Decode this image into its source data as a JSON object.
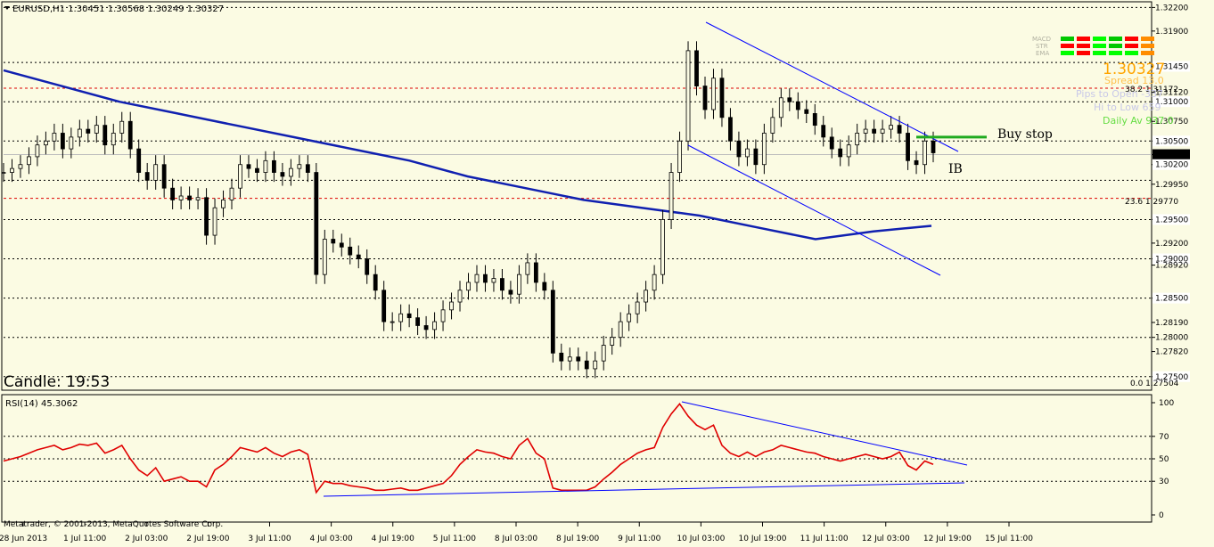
{
  "header": {
    "symbol_line": "EURUSD,H1  1.30451 1.30568 1.30249 1.30327",
    "rsi_label": "RSI(14) 45.3062",
    "copyright": "Metatrader, © 2001-2013, MetaQuotes Software Corp.",
    "candle_timer": "Candle:  19:53"
  },
  "panel": {
    "indicator_labels": [
      "MACD",
      "STR",
      "EMA"
    ],
    "price": "1.30327",
    "spread": "Spread  13.0",
    "pips_to_open": "Pips to Open -337",
    "hi_to_low": "Hi to Low  659",
    "daily_av": "Daily Av 937.0",
    "colors": {
      "green": "#00c800",
      "red": "#ff0000",
      "orange": "#ff8c00",
      "lime": "#00ff00",
      "price": "#ffa500"
    }
  },
  "annotations": {
    "buy_stop": "Buy stop",
    "ib": "IB",
    "fib_382": "38.2  1.31172",
    "fib_236": "23.6  1.29770",
    "fib_0": "0.0  1.27504"
  },
  "chart_data": [
    {
      "type": "candlestick",
      "symbol": "EURUSD",
      "timeframe": "H1",
      "ylim": [
        1.2735,
        1.3225
      ],
      "y_ticks": [
        "1.32200",
        "1.31900",
        "1.31450",
        "1.31120",
        "1.31000",
        "1.30750",
        "1.30500",
        "1.30327",
        "1.30200",
        "1.29950",
        "1.29500",
        "1.29200",
        "1.29000",
        "1.28920",
        "1.28500",
        "1.28190",
        "1.28000",
        "1.27820",
        "1.27500"
      ],
      "x_labels": [
        "28 Jun 2013",
        "1 Jul 11:00",
        "2 Jul 03:00",
        "2 Jul 19:00",
        "3 Jul 11:00",
        "4 Jul 03:00",
        "4 Jul 19:00",
        "5 Jul 11:00",
        "8 Jul 03:00",
        "8 Jul 19:00",
        "9 Jul 11:00",
        "10 Jul 03:00",
        "10 Jul 19:00",
        "11 Jul 11:00",
        "12 Jul 03:00",
        "12 Jul 19:00",
        "15 Jul 11:00"
      ],
      "close_path": [
        1.301,
        1.3015,
        1.302,
        1.303,
        1.3045,
        1.305,
        1.306,
        1.304,
        1.3055,
        1.3065,
        1.306,
        1.307,
        1.3045,
        1.306,
        1.3075,
        1.304,
        1.301,
        1.3,
        1.302,
        1.299,
        1.2975,
        1.298,
        1.2975,
        1.2978,
        1.293,
        1.2965,
        1.2975,
        1.299,
        1.302,
        1.3015,
        1.301,
        1.3025,
        1.301,
        1.3005,
        1.3015,
        1.302,
        1.301,
        1.288,
        1.2925,
        1.292,
        1.2915,
        1.2905,
        1.29,
        1.288,
        1.286,
        1.282,
        1.282,
        1.283,
        1.2825,
        1.2815,
        1.281,
        1.282,
        1.2835,
        1.2845,
        1.286,
        1.287,
        1.288,
        1.287,
        1.2875,
        1.286,
        1.2855,
        1.288,
        1.2895,
        1.287,
        1.286,
        1.278,
        1.277,
        1.2775,
        1.277,
        1.276,
        1.277,
        1.279,
        1.28,
        1.282,
        1.283,
        1.2845,
        1.286,
        1.288,
        1.295,
        1.301,
        1.305,
        1.3165,
        1.312,
        1.309,
        1.313,
        1.308,
        1.305,
        1.303,
        1.304,
        1.302,
        1.306,
        1.308,
        1.3105,
        1.31,
        1.309,
        1.3085,
        1.307,
        1.3055,
        1.304,
        1.303,
        1.3045,
        1.306,
        1.3065,
        1.306,
        1.3065,
        1.307,
        1.306,
        1.3025,
        1.302,
        1.305,
        1.3035
      ],
      "horizontal_levels": [
        {
          "value": 1.322,
          "style": "dotted-black"
        },
        {
          "value": 1.315,
          "style": "dotted-black"
        },
        {
          "value": 1.31,
          "style": "dotted-black"
        },
        {
          "value": 1.305,
          "style": "dotted-black"
        },
        {
          "value": 1.3,
          "style": "dotted-black"
        },
        {
          "value": 1.295,
          "style": "dotted-black"
        },
        {
          "value": 1.29,
          "style": "dotted-black"
        },
        {
          "value": 1.285,
          "style": "dotted-black"
        },
        {
          "value": 1.28,
          "style": "dotted-black"
        },
        {
          "value": 1.275,
          "style": "dotted-black"
        },
        {
          "value": 1.31172,
          "style": "dashed-red"
        },
        {
          "value": 1.2977,
          "style": "dashed-red"
        },
        {
          "value": 1.30327,
          "style": "grey-current"
        }
      ],
      "buy_stop_level": 1.3055,
      "moving_average": [
        1.314,
        1.312,
        1.31,
        1.3085,
        1.307,
        1.3055,
        1.304,
        1.3025,
        1.3005,
        1.299,
        1.2975,
        1.2965,
        1.2955,
        1.294,
        1.2925,
        1.2935,
        1.2942
      ]
    },
    {
      "type": "line",
      "name": "RSI(14)",
      "ylim": [
        0,
        100
      ],
      "y_ticks": [
        "100",
        "70",
        "50",
        "30",
        "0"
      ],
      "levels": [
        70,
        50,
        30
      ],
      "values": [
        48,
        50,
        52,
        55,
        58,
        60,
        62,
        58,
        60,
        63,
        62,
        64,
        55,
        58,
        62,
        50,
        40,
        35,
        42,
        30,
        32,
        34,
        30,
        30,
        25,
        40,
        45,
        52,
        60,
        58,
        56,
        60,
        55,
        52,
        56,
        58,
        54,
        20,
        30,
        28,
        28,
        26,
        25,
        24,
        22,
        22,
        23,
        24,
        22,
        22,
        24,
        26,
        28,
        35,
        45,
        52,
        58,
        56,
        55,
        52,
        50,
        62,
        68,
        55,
        50,
        24,
        22,
        22,
        22,
        22,
        25,
        32,
        38,
        45,
        50,
        55,
        58,
        60,
        78,
        90,
        99,
        88,
        80,
        76,
        80,
        62,
        55,
        52,
        56,
        52,
        56,
        58,
        62,
        60,
        58,
        56,
        55,
        52,
        50,
        48,
        50,
        52,
        54,
        52,
        50,
        52,
        56,
        44,
        40,
        48,
        45
      ]
    }
  ]
}
